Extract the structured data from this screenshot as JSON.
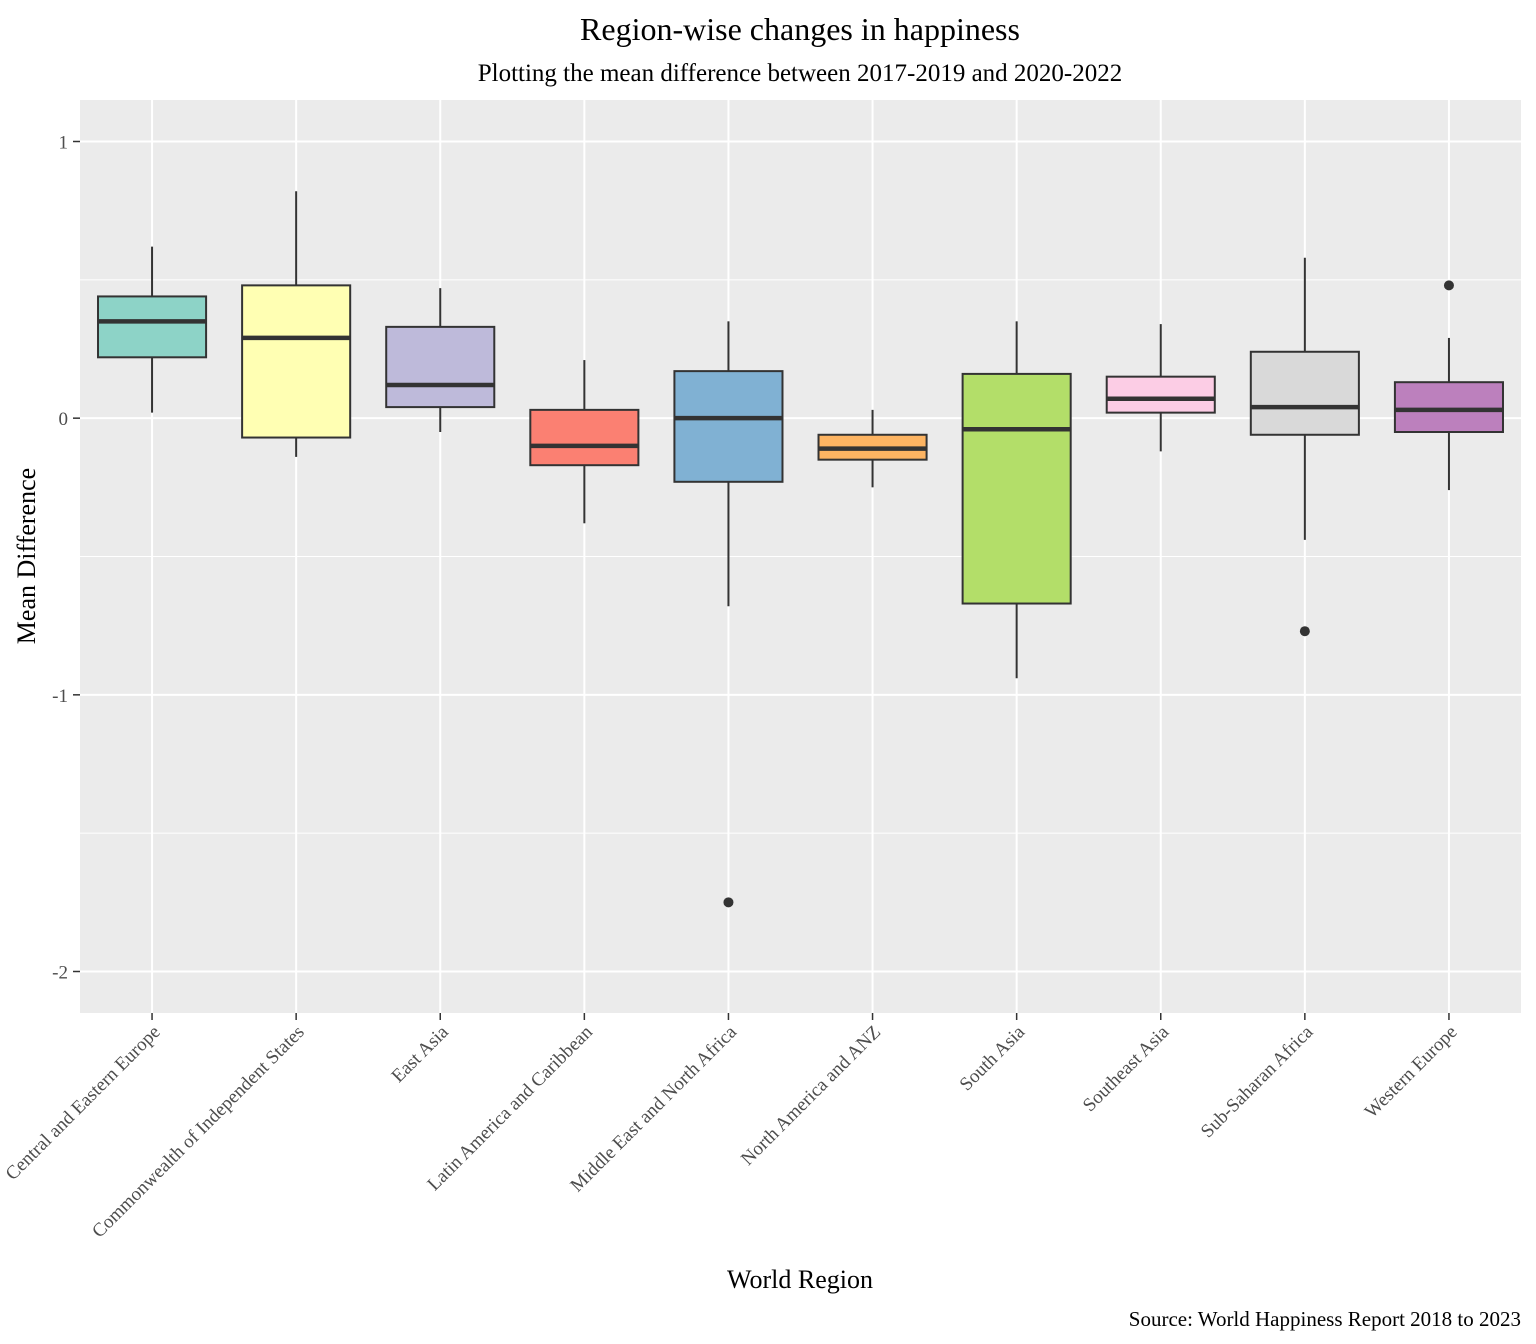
{
  "chart_data": {
    "type": "boxplot",
    "title": "Region-wise changes in happiness",
    "subtitle": "Plotting the mean difference between 2017-2019 and 2020-2022",
    "xlabel": "World Region",
    "ylabel": "Mean Difference",
    "caption": "Source: World Happiness Report 2018 to 2023",
    "ylim": [
      -2.15,
      1.15
    ],
    "y_ticks": [
      1,
      0,
      -1,
      -2
    ],
    "y_tick_labels": [
      "1",
      "0",
      "-1",
      "-2"
    ],
    "grid": true,
    "legend": "none",
    "categories": [
      "Central and Eastern Europe",
      "Commonwealth of Independent States",
      "East Asia",
      "Latin America and Caribbean",
      "Middle East and North Africa",
      "North America and ANZ",
      "South Asia",
      "Southeast Asia",
      "Sub-Saharan Africa",
      "Western Europe"
    ],
    "boxes": [
      {
        "region": "Central and Eastern Europe",
        "whisker_low": 0.02,
        "q1": 0.22,
        "median": 0.35,
        "q3": 0.44,
        "whisker_high": 0.62,
        "outliers": [],
        "color": "#8DD3C7"
      },
      {
        "region": "Commonwealth of Independent States",
        "whisker_low": -0.14,
        "q1": -0.07,
        "median": 0.29,
        "q3": 0.48,
        "whisker_high": 0.82,
        "outliers": [],
        "color": "#FFFFB3"
      },
      {
        "region": "East Asia",
        "whisker_low": -0.05,
        "q1": 0.04,
        "median": 0.12,
        "q3": 0.33,
        "whisker_high": 0.47,
        "outliers": [],
        "color": "#BEBADA"
      },
      {
        "region": "Latin America and Caribbean",
        "whisker_low": -0.38,
        "q1": -0.17,
        "median": -0.1,
        "q3": 0.03,
        "whisker_high": 0.21,
        "outliers": [],
        "color": "#FB8072"
      },
      {
        "region": "Middle East and North Africa",
        "whisker_low": -0.68,
        "q1": -0.23,
        "median": 0.0,
        "q3": 0.17,
        "whisker_high": 0.35,
        "outliers": [
          -1.75
        ],
        "color": "#80B1D3"
      },
      {
        "region": "North America and ANZ",
        "whisker_low": -0.25,
        "q1": -0.15,
        "median": -0.11,
        "q3": -0.06,
        "whisker_high": 0.03,
        "outliers": [],
        "color": "#FDB462"
      },
      {
        "region": "South Asia",
        "whisker_low": -0.94,
        "q1": -0.67,
        "median": -0.04,
        "q3": 0.16,
        "whisker_high": 0.35,
        "outliers": [],
        "color": "#B3DE69"
      },
      {
        "region": "Southeast Asia",
        "whisker_low": -0.12,
        "q1": 0.02,
        "median": 0.07,
        "q3": 0.15,
        "whisker_high": 0.34,
        "outliers": [],
        "color": "#FCCDE5"
      },
      {
        "region": "Sub-Saharan Africa",
        "whisker_low": -0.44,
        "q1": -0.06,
        "median": 0.04,
        "q3": 0.24,
        "whisker_high": 0.58,
        "outliers": [
          -0.77
        ],
        "color": "#D9D9D9"
      },
      {
        "region": "Western Europe",
        "whisker_low": -0.26,
        "q1": -0.05,
        "median": 0.03,
        "q3": 0.13,
        "whisker_high": 0.29,
        "outliers": [
          0.48
        ],
        "color": "#BC80BD"
      }
    ]
  }
}
